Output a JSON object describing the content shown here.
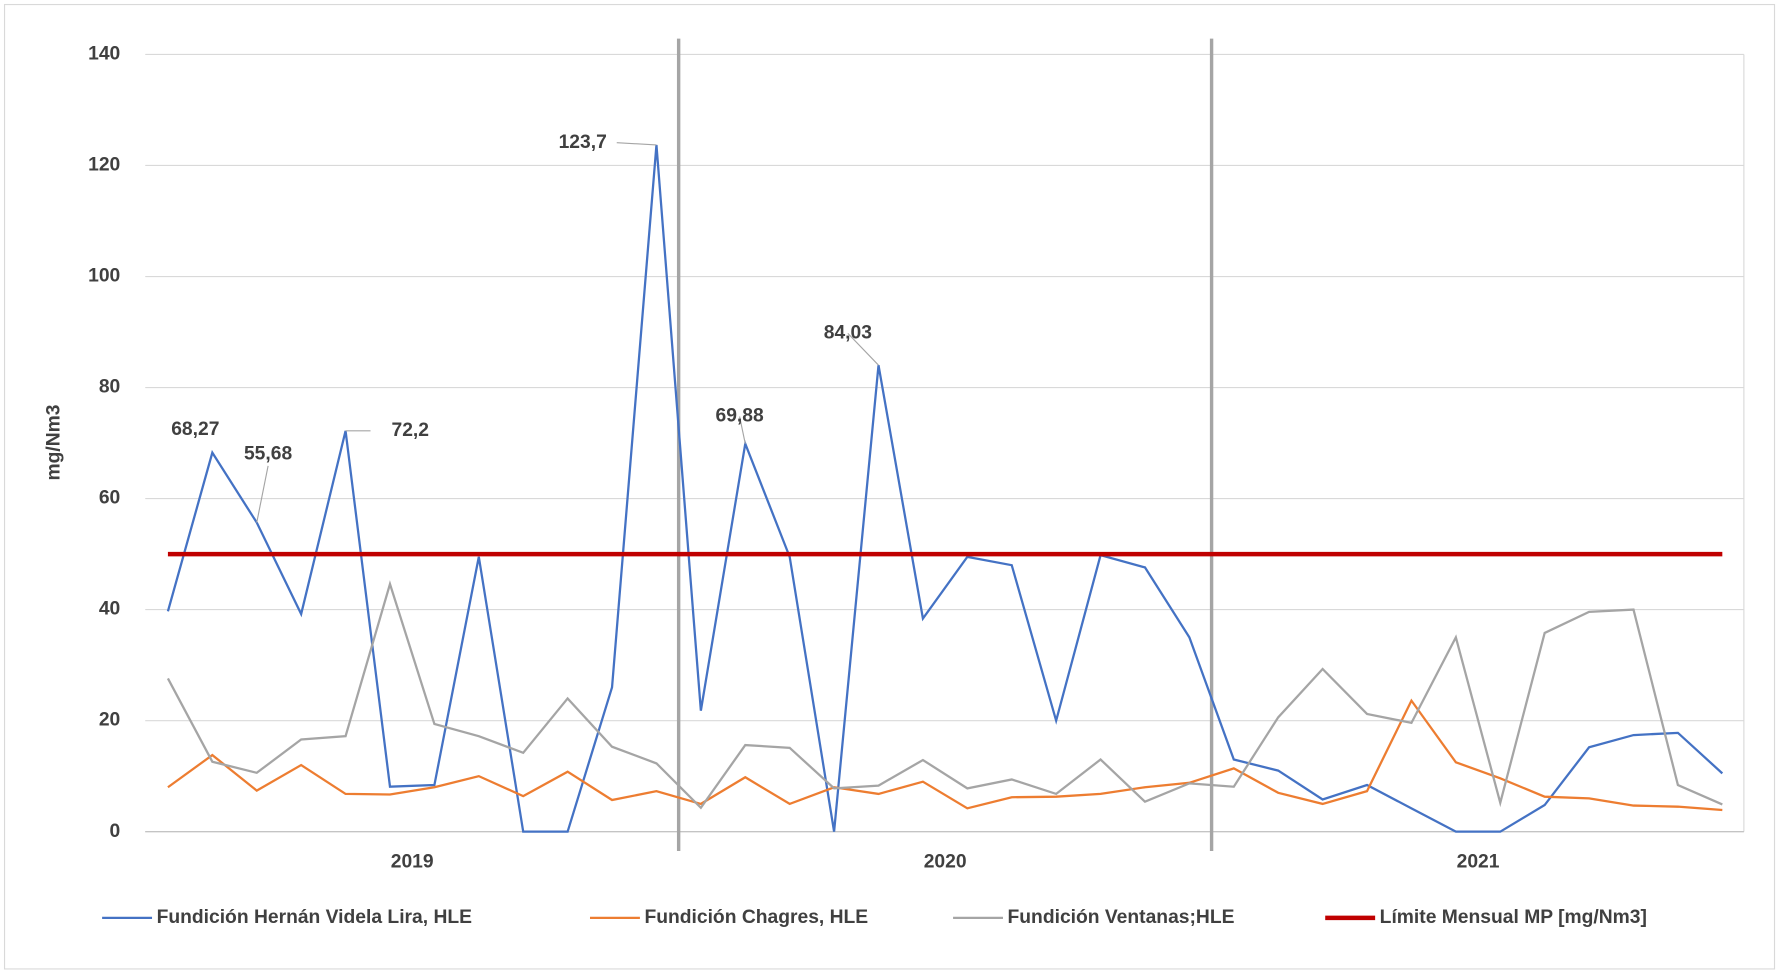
{
  "chart_data": {
    "type": "line",
    "y_label": "mg/Nm3",
    "categories": [
      null,
      null,
      null,
      null,
      null,
      null,
      null,
      null,
      null,
      null,
      null,
      null,
      null,
      null,
      null,
      null,
      null,
      null,
      null,
      null,
      null,
      null,
      null,
      null,
      null,
      null,
      null,
      null,
      null,
      null,
      null,
      null,
      null,
      null,
      null,
      null
    ],
    "x_groups": [
      "2019",
      "2020",
      "2021"
    ],
    "ylim": [
      0,
      140
    ],
    "yticks": [
      0,
      20,
      40,
      60,
      80,
      100,
      120,
      140
    ],
    "grid": true,
    "legend": "bottom",
    "series": [
      {
        "name": "Fundición Hernán Videla Lira, HLE",
        "color": "#4472c4",
        "values": [
          39.7,
          68.27,
          55.68,
          39.2,
          72.2,
          8.1,
          8.4,
          49.5,
          0,
          0,
          26,
          123.7,
          21.8,
          69.88,
          49.5,
          0,
          84.03,
          38.4,
          49.5,
          48,
          20,
          49.8,
          47.6,
          35,
          13,
          11,
          5.8,
          8.4,
          4.2,
          0,
          0,
          4.8,
          15.2,
          17.4,
          17.8,
          10.5
        ],
        "value_labels": [
          null,
          "68,27",
          "55,68",
          null,
          "72,2",
          null,
          null,
          null,
          null,
          null,
          null,
          "123,7",
          null,
          "69,88",
          null,
          null,
          "84,03",
          null,
          null,
          null,
          null,
          null,
          null,
          null,
          null,
          null,
          null,
          null,
          null,
          null,
          null,
          null,
          null,
          null,
          null,
          null
        ]
      },
      {
        "name": "Fundición Chagres, HLE",
        "color": "#ed7d31",
        "values": [
          8,
          13.8,
          7.4,
          12,
          6.8,
          6.7,
          8,
          10,
          6.4,
          10.8,
          5.7,
          7.3,
          5,
          9.8,
          5,
          8,
          6.8,
          9,
          4.2,
          6.2,
          6.3,
          6.8,
          8,
          8.8,
          11.4,
          7,
          5,
          7.3,
          23.6,
          12.5,
          9.6,
          6.3,
          6,
          4.7,
          4.5,
          3.9
        ]
      },
      {
        "name": "Fundición Ventanas;HLE",
        "color": "#a5a5a5",
        "values": [
          27.6,
          12.6,
          10.6,
          16.6,
          17.2,
          44.6,
          19.4,
          17.2,
          14.2,
          24,
          15.3,
          12.3,
          4.3,
          15.6,
          15.1,
          7.8,
          8.3,
          12.9,
          7.8,
          9.4,
          6.8,
          13,
          5.4,
          8.7,
          8.1,
          20.6,
          29.3,
          21.2,
          19.6,
          35,
          5.2,
          35.8,
          39.6,
          40,
          8.4,
          4.9
        ]
      },
      {
        "name": "Límite Mensual MP [mg/Nm3]",
        "color": "#c00000",
        "values": [
          50,
          50,
          50,
          50,
          50,
          50,
          50,
          50,
          50,
          50,
          50,
          50,
          50,
          50,
          50,
          50,
          50,
          50,
          50,
          50,
          50,
          50,
          50,
          50,
          50,
          50,
          50,
          50,
          50,
          50,
          50,
          50,
          50,
          50,
          50,
          50
        ]
      }
    ]
  }
}
